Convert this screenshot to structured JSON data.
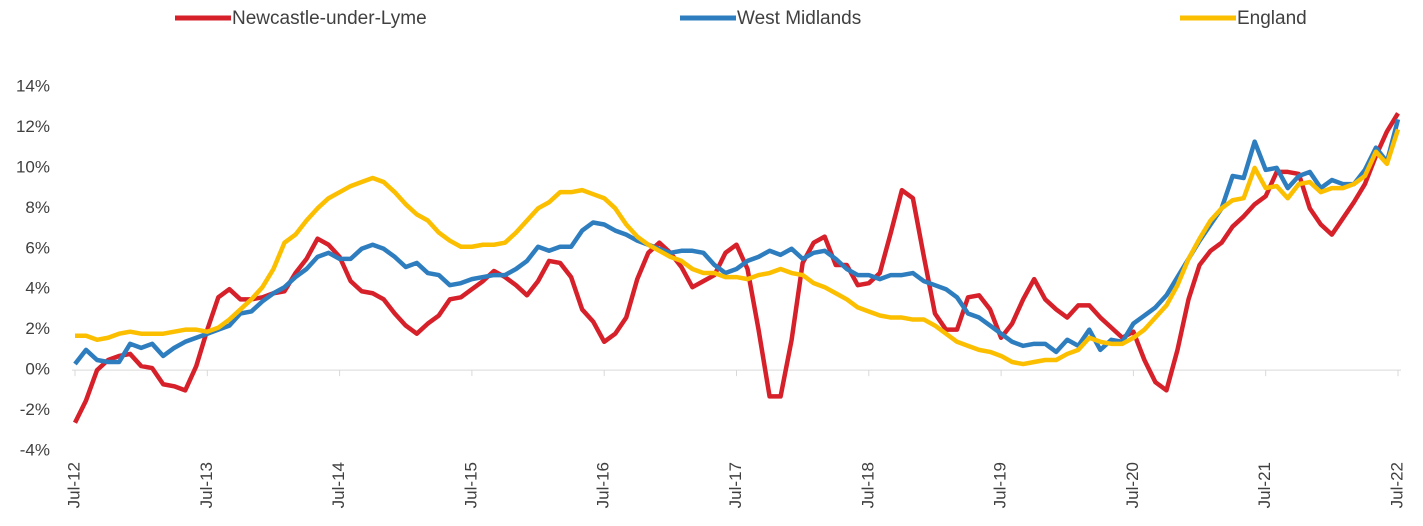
{
  "chart_data": {
    "type": "line",
    "legend": "top",
    "categories": [
      "Jul-12",
      null,
      null,
      null,
      null,
      null,
      null,
      null,
      null,
      null,
      null,
      null,
      "Jul-13",
      null,
      null,
      null,
      null,
      null,
      null,
      null,
      null,
      null,
      null,
      null,
      "Jul-14",
      null,
      null,
      null,
      null,
      null,
      null,
      null,
      null,
      null,
      null,
      null,
      "Jul-15",
      null,
      null,
      null,
      null,
      null,
      null,
      null,
      null,
      null,
      null,
      null,
      "Jul-16",
      null,
      null,
      null,
      null,
      null,
      null,
      null,
      null,
      null,
      null,
      null,
      "Jul-17",
      null,
      null,
      null,
      null,
      null,
      null,
      null,
      null,
      null,
      null,
      null,
      "Jul-18",
      null,
      null,
      null,
      null,
      null,
      null,
      null,
      null,
      null,
      null,
      null,
      "Jul-19",
      null,
      null,
      null,
      null,
      null,
      null,
      null,
      null,
      null,
      null,
      null,
      "Jul-20",
      null,
      null,
      null,
      null,
      null,
      null,
      null,
      null,
      null,
      null,
      null,
      "Jul-21",
      null,
      null,
      null,
      null,
      null,
      null,
      null,
      null,
      null,
      null,
      null,
      "Jul-22"
    ],
    "ylim": [
      -4,
      14
    ],
    "yticks": [
      {
        "value": -4,
        "label": "-4%"
      },
      {
        "value": -2,
        "label": "-2%"
      },
      {
        "value": 0,
        "label": "0%"
      },
      {
        "value": 2,
        "label": "2%"
      },
      {
        "value": 4,
        "label": "4%"
      },
      {
        "value": 6,
        "label": "6%"
      },
      {
        "value": 8,
        "label": "8%"
      },
      {
        "value": 10,
        "label": "10%"
      },
      {
        "value": 12,
        "label": "12%"
      },
      {
        "value": 14,
        "label": "14%"
      }
    ],
    "series": [
      {
        "name": "Newcastle-under-Lyme",
        "color": "#d6202a",
        "values": [
          -2.6,
          -1.5,
          0.0,
          0.5,
          0.7,
          0.8,
          0.2,
          0.1,
          -0.7,
          -0.8,
          -1.0,
          0.2,
          2.0,
          3.6,
          4.0,
          3.5,
          3.5,
          3.6,
          3.8,
          3.9,
          4.8,
          5.5,
          6.5,
          6.2,
          5.6,
          4.4,
          3.9,
          3.8,
          3.5,
          2.8,
          2.2,
          1.8,
          2.3,
          2.7,
          3.5,
          3.6,
          4.0,
          4.4,
          4.9,
          4.6,
          4.2,
          3.7,
          4.4,
          5.4,
          5.3,
          4.6,
          3.0,
          2.4,
          1.4,
          1.8,
          2.6,
          4.5,
          5.8,
          6.3,
          5.8,
          5.1,
          4.1,
          4.4,
          4.7,
          5.8,
          6.2,
          5.0,
          2.0,
          -1.3,
          -1.3,
          1.5,
          5.3,
          6.3,
          6.6,
          5.2,
          5.2,
          4.2,
          4.3,
          4.8,
          6.8,
          8.9,
          8.5,
          5.6,
          2.8,
          2.0,
          2.0,
          3.6,
          3.7,
          3.0,
          1.6,
          2.3,
          3.5,
          4.5,
          3.5,
          3.0,
          2.6,
          3.2,
          3.2,
          2.6,
          2.1,
          1.6,
          1.9,
          0.5,
          -0.6,
          -1.0,
          1.0,
          3.5,
          5.2,
          5.9,
          6.3,
          7.1,
          7.6,
          8.2,
          8.6,
          9.8,
          9.8,
          9.7,
          8.0,
          7.2,
          6.7,
          7.5,
          8.3,
          9.2,
          10.6,
          11.8,
          12.7
        ]
      },
      {
        "name": "West Midlands",
        "color": "#2e7ebf",
        "values": [
          0.3,
          1.0,
          0.5,
          0.4,
          0.4,
          1.3,
          1.1,
          1.3,
          0.7,
          1.1,
          1.4,
          1.6,
          1.8,
          2.0,
          2.2,
          2.8,
          2.9,
          3.4,
          3.8,
          4.1,
          4.6,
          5.0,
          5.6,
          5.8,
          5.5,
          5.5,
          6.0,
          6.2,
          6.0,
          5.6,
          5.1,
          5.3,
          4.8,
          4.7,
          4.2,
          4.3,
          4.5,
          4.6,
          4.7,
          4.7,
          5.0,
          5.4,
          6.1,
          5.9,
          6.1,
          6.1,
          6.9,
          7.3,
          7.2,
          6.9,
          6.7,
          6.4,
          6.2,
          6.0,
          5.8,
          5.9,
          5.9,
          5.8,
          5.2,
          4.8,
          5.0,
          5.4,
          5.6,
          5.9,
          5.7,
          6.0,
          5.5,
          5.8,
          5.9,
          5.5,
          5.0,
          4.7,
          4.7,
          4.5,
          4.7,
          4.7,
          4.8,
          4.4,
          4.2,
          4.0,
          3.6,
          2.8,
          2.6,
          2.2,
          1.8,
          1.4,
          1.2,
          1.3,
          1.3,
          0.9,
          1.5,
          1.2,
          2.0,
          1.0,
          1.5,
          1.4,
          2.3,
          2.7,
          3.1,
          3.7,
          4.6,
          5.5,
          6.4,
          7.2,
          8.0,
          9.6,
          9.5,
          11.3,
          9.9,
          10.0,
          9.0,
          9.6,
          9.8,
          9.0,
          9.4,
          9.2,
          9.2,
          9.9,
          11.0,
          10.3,
          12.4
        ]
      },
      {
        "name": "England",
        "color": "#fbbf00",
        "values": [
          1.7,
          1.7,
          1.5,
          1.6,
          1.8,
          1.9,
          1.8,
          1.8,
          1.8,
          1.9,
          2.0,
          2.0,
          1.9,
          2.1,
          2.5,
          3.0,
          3.5,
          4.1,
          5.0,
          6.3,
          6.7,
          7.4,
          8.0,
          8.5,
          8.8,
          9.1,
          9.3,
          9.5,
          9.3,
          8.8,
          8.2,
          7.7,
          7.4,
          6.8,
          6.4,
          6.1,
          6.1,
          6.2,
          6.2,
          6.3,
          6.8,
          7.4,
          8.0,
          8.3,
          8.8,
          8.8,
          8.9,
          8.7,
          8.5,
          8.0,
          7.2,
          6.6,
          6.2,
          5.9,
          5.6,
          5.4,
          5.0,
          4.8,
          4.8,
          4.6,
          4.6,
          4.5,
          4.7,
          4.8,
          5.0,
          4.8,
          4.7,
          4.3,
          4.1,
          3.8,
          3.5,
          3.1,
          2.9,
          2.7,
          2.6,
          2.6,
          2.5,
          2.5,
          2.2,
          1.8,
          1.4,
          1.2,
          1.0,
          0.9,
          0.7,
          0.4,
          0.3,
          0.4,
          0.5,
          0.5,
          0.8,
          1.0,
          1.6,
          1.4,
          1.3,
          1.3,
          1.6,
          2.0,
          2.6,
          3.2,
          4.2,
          5.5,
          6.5,
          7.4,
          8.0,
          8.4,
          8.5,
          10.0,
          9.0,
          9.1,
          8.5,
          9.2,
          9.3,
          8.8,
          9.0,
          9.0,
          9.2,
          9.6,
          10.8,
          10.2,
          11.9
        ]
      }
    ]
  }
}
